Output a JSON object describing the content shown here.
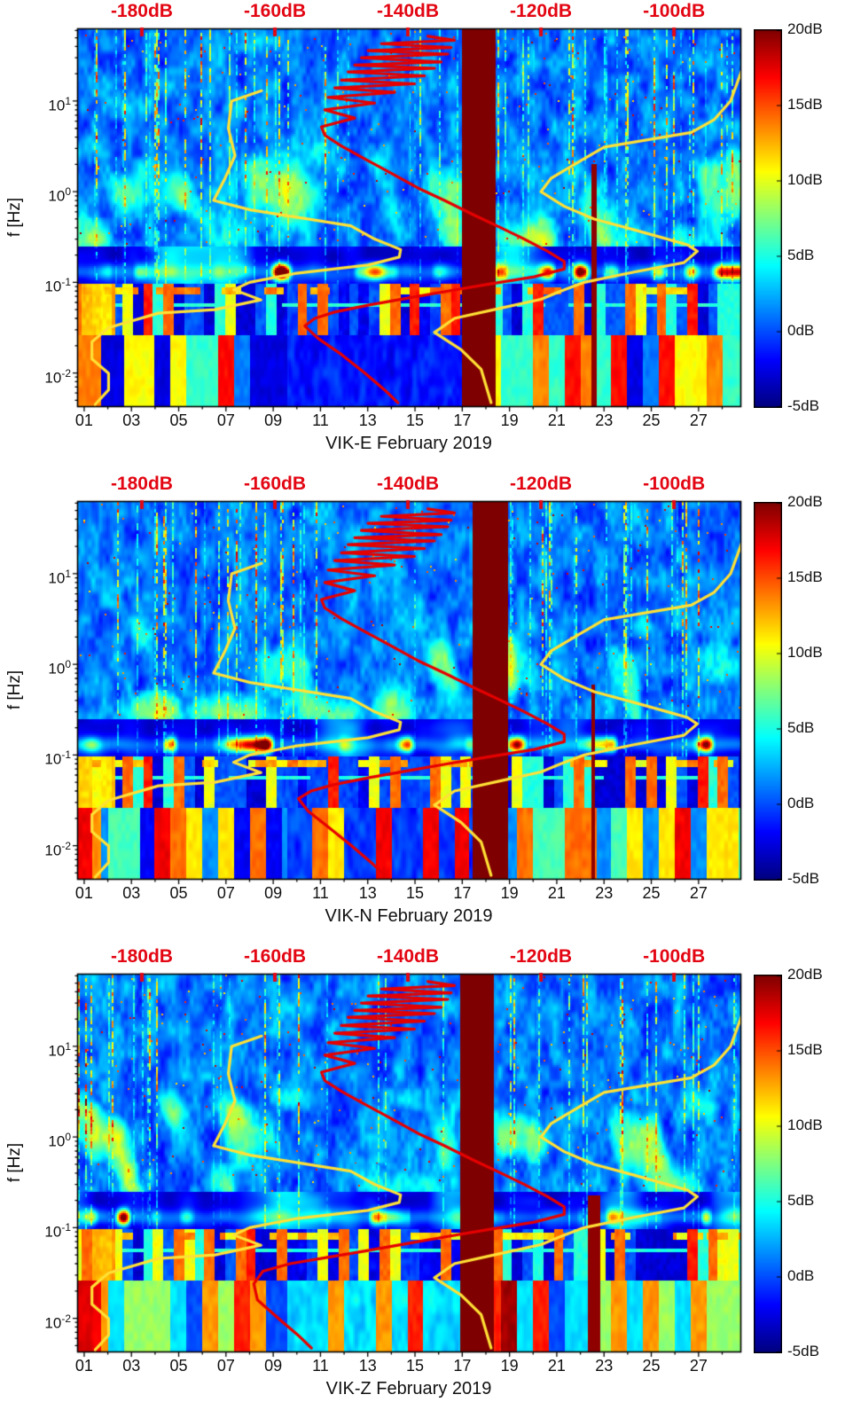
{
  "chart_data": {
    "type": "heatmap",
    "subtype": "seismic-noise-spectrogram",
    "panels": [
      {
        "title": "VIK-E February 2019",
        "component": "E",
        "seed": 11,
        "red_band_days": [
          17.0,
          18.45
        ],
        "red_line": {
          "day": 22.6,
          "f_max_hz": 2.0,
          "half_width_days": 0.09
        },
        "psd_low_freq_db_shift": 0,
        "bottom_bias_db": 0
      },
      {
        "title": "VIK-N February 2019",
        "component": "N",
        "seed": 47,
        "red_band_days": [
          17.45,
          18.95
        ],
        "red_line": {
          "day": 22.55,
          "f_max_hz": 0.6,
          "half_width_days": 0.09
        },
        "psd_low_freq_db_shift": -2,
        "bottom_bias_db": 0.5
      },
      {
        "title": "VIK-Z February 2019",
        "component": "Z",
        "seed": 83,
        "red_band_days": [
          16.95,
          18.35
        ],
        "red_line": {
          "day": 22.6,
          "f_max_hz": 0.22,
          "half_width_days": 0.24
        },
        "psd_low_freq_db_shift": -13,
        "bottom_bias_db": 2.5
      }
    ],
    "x_axis": {
      "unit": "day of February 2019",
      "range_days": [
        0.74,
        28.77
      ],
      "tick_labels": [
        "01",
        "03",
        "05",
        "07",
        "09",
        "11",
        "13",
        "15",
        "17",
        "19",
        "21",
        "23",
        "25",
        "27"
      ],
      "tick_values": [
        1,
        3,
        5,
        7,
        9,
        11,
        13,
        15,
        17,
        19,
        21,
        23,
        25,
        27
      ],
      "minor_tick_values": [
        2,
        4,
        6,
        8,
        10,
        12,
        14,
        16,
        18,
        20,
        22,
        24,
        26,
        28
      ]
    },
    "y_axis": {
      "label": "f [Hz]",
      "scale": "log10",
      "range_hz": [
        0.0043,
        62
      ],
      "tick_exponents": [
        1,
        0,
        -1,
        -2
      ]
    },
    "color_axis": {
      "range_db": [
        -5,
        20
      ],
      "colormap": "jet",
      "tick_labels": [
        "20dB",
        "15dB",
        "10dB",
        "5dB",
        "0dB",
        "-5dB"
      ],
      "tick_values": [
        20,
        15,
        10,
        5,
        0,
        -5
      ]
    },
    "top_db_axis": {
      "color": "#e30613",
      "labels": [
        "-180dB",
        "-160dB",
        "-140dB",
        "-120dB",
        "-100dB"
      ],
      "values": [
        -180,
        -160,
        -140,
        -120,
        -100
      ],
      "db_to_day": {
        "db_ref": -180,
        "day_ref": 3.44,
        "days_per_db": 0.2815
      }
    },
    "overlays": [
      {
        "name": "low-noise-model-curve",
        "color": "#ffe135",
        "points_f_hz_db": [
          [
            13,
            -162
          ],
          [
            10,
            -166.5
          ],
          [
            5,
            -167
          ],
          [
            2.5,
            -166
          ],
          [
            1.4,
            -167.5
          ],
          [
            0.8,
            -169.2
          ],
          [
            0.63,
            -163.7
          ],
          [
            0.42,
            -148.6
          ],
          [
            0.3,
            -145
          ],
          [
            0.23,
            -141.1
          ],
          [
            0.19,
            -141.3
          ],
          [
            0.155,
            -146
          ],
          [
            0.125,
            -157
          ],
          [
            0.1,
            -163.8
          ],
          [
            0.083,
            -166.2
          ],
          [
            0.064,
            -162.1
          ],
          [
            0.05,
            -169
          ],
          [
            0.0457,
            -177.5
          ],
          [
            0.0316,
            -185
          ],
          [
            0.022,
            -187.5
          ],
          [
            0.0143,
            -187.5
          ],
          [
            0.0099,
            -185
          ],
          [
            0.0065,
            -185
          ],
          [
            0.0045,
            -187
          ]
        ]
      },
      {
        "name": "high-noise-model-curve",
        "color": "#ffe135",
        "points_f_hz_db": [
          [
            55,
            -88
          ],
          [
            20,
            -90
          ],
          [
            10,
            -91.5
          ],
          [
            6.2,
            -94
          ],
          [
            4.5,
            -97.4
          ],
          [
            3.1,
            -110.5
          ],
          [
            2.2,
            -114
          ],
          [
            1.4,
            -118.5
          ],
          [
            1,
            -120
          ],
          [
            0.69,
            -116.5
          ],
          [
            0.5,
            -112
          ],
          [
            0.38,
            -106
          ],
          [
            0.3,
            -101
          ],
          [
            0.26,
            -98
          ],
          [
            0.22,
            -96.5
          ],
          [
            0.165,
            -98.5
          ],
          [
            0.13,
            -106
          ],
          [
            0.1,
            -113.5
          ],
          [
            0.08,
            -117
          ],
          [
            0.065,
            -120
          ],
          [
            0.052,
            -126
          ],
          [
            0.04,
            -133
          ],
          [
            0.028,
            -136
          ],
          [
            0.018,
            -132
          ],
          [
            0.011,
            -129
          ],
          [
            0.0047,
            -127.5
          ]
        ]
      },
      {
        "name": "median-psd-curve",
        "color": "#e60000",
        "points_f_hz_db": [
          [
            52,
            -137
          ],
          [
            47,
            -133
          ],
          [
            43,
            -144
          ],
          [
            39,
            -133.5
          ],
          [
            36,
            -146
          ],
          [
            33,
            -134
          ],
          [
            30,
            -147
          ],
          [
            27,
            -135
          ],
          [
            25,
            -148
          ],
          [
            23,
            -136
          ],
          [
            21,
            -149
          ],
          [
            19,
            -137.5
          ],
          [
            17,
            -150
          ],
          [
            15.5,
            -139
          ],
          [
            14,
            -151
          ],
          [
            12.5,
            -142
          ],
          [
            11,
            -152
          ],
          [
            9.5,
            -145
          ],
          [
            8,
            -152.5
          ],
          [
            6.5,
            -148
          ],
          [
            5.2,
            -153
          ],
          [
            4.2,
            -152.5
          ],
          [
            3.2,
            -150
          ],
          [
            2.3,
            -146.5
          ],
          [
            1.6,
            -142.5
          ],
          [
            1.1,
            -138.5
          ],
          [
            0.8,
            -134.5
          ],
          [
            0.55,
            -130
          ],
          [
            0.4,
            -126
          ],
          [
            0.3,
            -122.5
          ],
          [
            0.22,
            -119
          ],
          [
            0.17,
            -116.5
          ],
          [
            0.14,
            -116.5
          ],
          [
            0.115,
            -121
          ],
          [
            0.095,
            -128
          ],
          [
            0.08,
            -134
          ],
          [
            0.067,
            -140
          ],
          [
            0.056,
            -146
          ],
          [
            0.047,
            -151
          ],
          [
            0.04,
            -154
          ],
          [
            0.033,
            -155.5
          ],
          [
            0.024,
            -153.5
          ],
          [
            0.016,
            -150
          ],
          [
            0.01,
            -146.5
          ],
          [
            0.0065,
            -143.5
          ],
          [
            0.0047,
            -141.5
          ]
        ]
      }
    ],
    "visual_features": [
      "deep-blue background with many narrow bright vertical streaks above 0.3 Hz",
      "cyan noise plumes between 0.3 and 2 Hz",
      "dark quiet band 0.1-0.25 Hz with bright yellow/red microseism spots near 0.1-0.15 Hz",
      "blocky yellow/cyan low-frequency noise columns below 0.07 Hz",
      "solid dark-red vertical band near days 17-19",
      "thin dark-red vertical line near day 22.6"
    ]
  }
}
